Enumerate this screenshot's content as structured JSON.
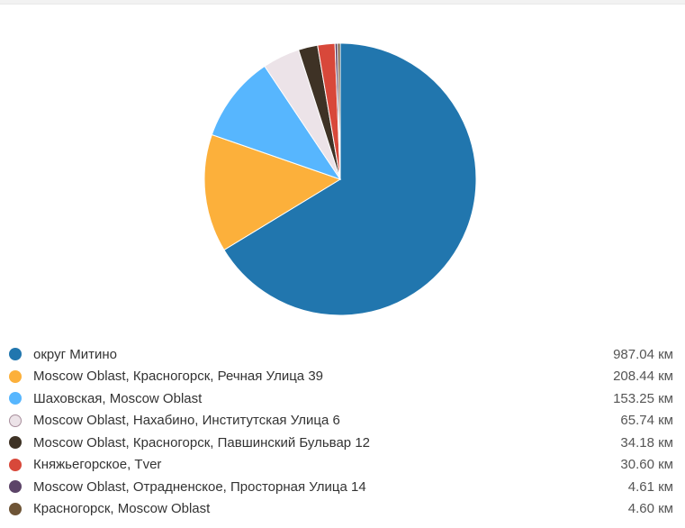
{
  "chart_data": {
    "type": "pie",
    "unit": "км",
    "slices": [
      {
        "label": "округ Митино",
        "value": 987.04,
        "value_label": "987.04 км",
        "color": "#2176ae"
      },
      {
        "label": "Moscow Oblast, Красногорск, Речная Улица 39",
        "value": 208.44,
        "value_label": "208.44 км",
        "color": "#fcb03b"
      },
      {
        "label": "Шаховская, Moscow Oblast",
        "value": 153.25,
        "value_label": "153.25 км",
        "color": "#57b6fe"
      },
      {
        "label": "Moscow Oblast, Нахабино, Институтская Улица 6",
        "value": 65.74,
        "value_label": "65.74 км",
        "color": "#ece3e8"
      },
      {
        "label": "Moscow Oblast, Красногорск, Павшинский Бульвар 12",
        "value": 34.18,
        "value_label": "34.18 км",
        "color": "#3e3225"
      },
      {
        "label": "Княжьегорское, Tver",
        "value": 30.6,
        "value_label": "30.60 км",
        "color": "#d8483a"
      },
      {
        "label": "Moscow Oblast, Отрадненское, Просторная Улица 14",
        "value": 4.61,
        "value_label": "4.61 км",
        "color": "#5c4468"
      },
      {
        "label": "Красногорск, Moscow Oblast",
        "value": 4.6,
        "value_label": "4.60 км",
        "color": "#6e5436"
      }
    ],
    "legend_position": "bottom"
  }
}
